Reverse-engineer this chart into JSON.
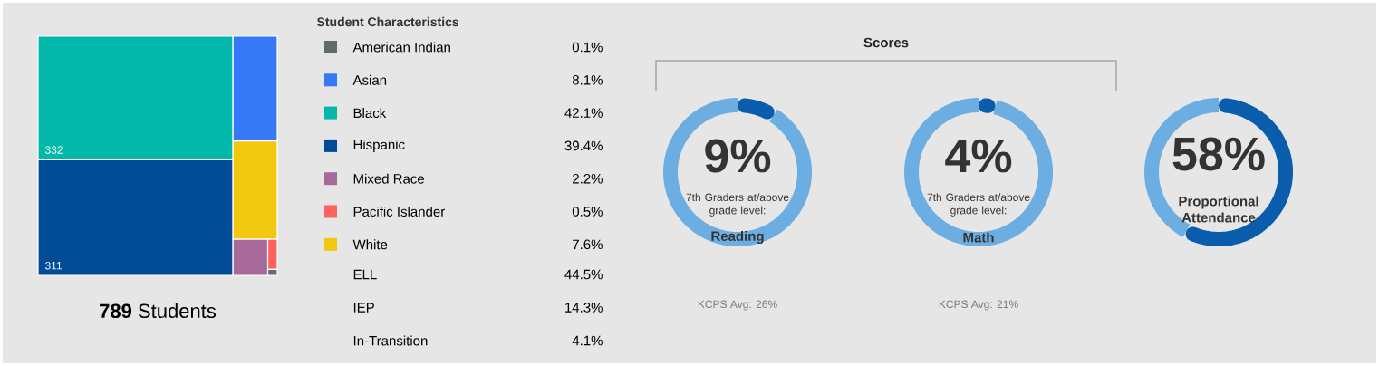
{
  "chart_data": [
    {
      "type": "other",
      "title": "Student Characteristics",
      "xlabel": "**789** Students",
      "categories": [
        "American Indian",
        "Asian",
        "Black",
        "Hispanic",
        "Mixed Race",
        "Pacific Islander",
        "White"
      ],
      "values": [
        0.1,
        8.1,
        42.1,
        39.4,
        2.2,
        0.5,
        7.6
      ],
      "value_labels": [
        "0.1%",
        "8.1%",
        "42.1%",
        "39.4%",
        "2.2%",
        "0.5%",
        "7.6%"
      ],
      "colors": [
        "#5f6b6d",
        "#3579f6",
        "#01b8aa",
        "#024b97",
        "#a66999",
        "#fd625e",
        "#f2c80f"
      ],
      "annotations": [
        "332",
        "311"
      ]
    },
    {
      "type": "other",
      "categories": [
        "ELL",
        "IEP",
        "In-Transition"
      ],
      "value_labels": [
        "44.5%",
        "14.3%",
        "4.1%"
      ]
    },
    {
      "type": "other",
      "title": "Scores"
    },
    {
      "type": "donut",
      "categories": [
        null,
        null
      ],
      "values": [
        9,
        91
      ],
      "colors": [
        "#0a5cad",
        "#6caee2"
      ],
      "value_labels": [
        "9%",
        null
      ],
      "subtitle": "7th Graders at/above grade level:",
      "xlabel": "Reading",
      "annotations": [
        "KCPS Avg: 26%"
      ]
    },
    {
      "type": "donut",
      "categories": [
        null,
        null
      ],
      "values": [
        4,
        96
      ],
      "colors": [
        "#0a5cad",
        "#6caee2"
      ],
      "value_labels": [
        "4%",
        null
      ],
      "subtitle": "7th Graders at/above grade level:",
      "xlabel": "Math",
      "annotations": [
        "KCPS Avg: 21%"
      ]
    },
    {
      "type": "donut",
      "categories": [
        null,
        null
      ],
      "values": [
        58,
        42
      ],
      "colors": [
        "#0a5cad",
        "#6caee2"
      ],
      "value_labels": [
        "58%",
        null
      ],
      "xlabel": "Proportional Attendance"
    }
  ]
}
